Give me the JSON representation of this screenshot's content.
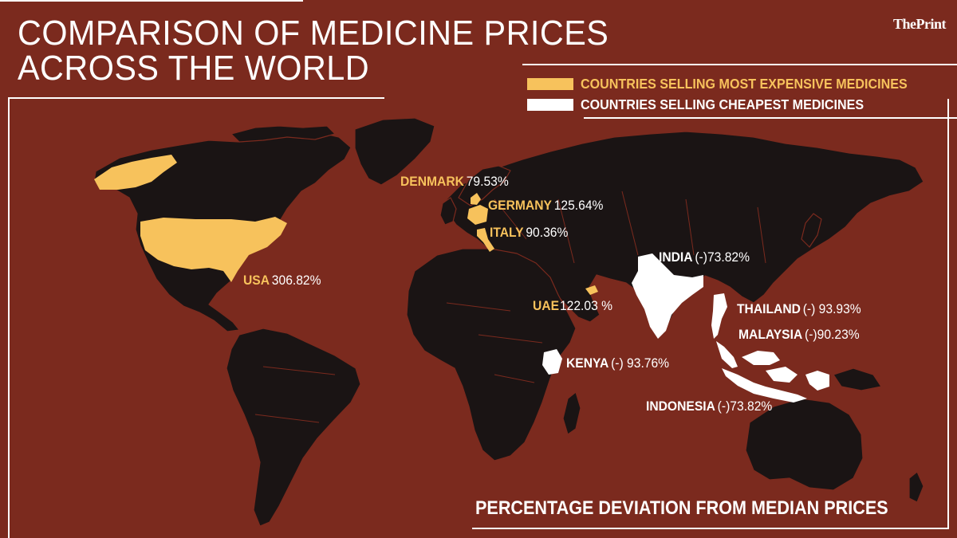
{
  "header": {
    "title_line1": "COMPARISON OF MEDICINE PRICES",
    "title_line2": "ACROSS THE WORLD",
    "brand_part1": "The",
    "brand_part2": "Print"
  },
  "legend": {
    "items": [
      {
        "label": "COUNTRIES SELLING MOST EXPENSIVE MEDICINES",
        "color": "#f7c25c"
      },
      {
        "label": "COUNTRIES SELLING CHEAPEST MEDICINES",
        "color": "#ffffff"
      }
    ]
  },
  "colors": {
    "background": "#7b2a1e",
    "land": "#1a1414",
    "expensive": "#f7c25c",
    "cheapest": "#ffffff"
  },
  "countries": {
    "usa": {
      "name": "USA",
      "value": "306.82%",
      "group": "expensive"
    },
    "denmark": {
      "name": "DENMARK",
      "value": "79.53%",
      "group": "expensive"
    },
    "germany": {
      "name": "GERMANY",
      "value": "125.64%",
      "group": "expensive"
    },
    "italy": {
      "name": "ITALY",
      "value": "90.36%",
      "group": "expensive"
    },
    "uae": {
      "name": "UAE",
      "value": "122.03 %",
      "group": "expensive"
    },
    "india": {
      "name": "INDIA",
      "value": "(-)73.82%",
      "group": "cheapest"
    },
    "thailand": {
      "name": "THAILAND",
      "value": "(-) 93.93%",
      "group": "cheapest"
    },
    "malaysia": {
      "name": "MALAYSIA",
      "value": "(-)90.23%",
      "group": "cheapest"
    },
    "kenya": {
      "name": "KENYA",
      "value": "(-) 93.76%",
      "group": "cheapest"
    },
    "indonesia": {
      "name": "INDONESIA",
      "value": "(-)73.82%",
      "group": "cheapest"
    }
  },
  "footnote": "PERCENTAGE DEVIATION FROM MEDIAN PRICES"
}
